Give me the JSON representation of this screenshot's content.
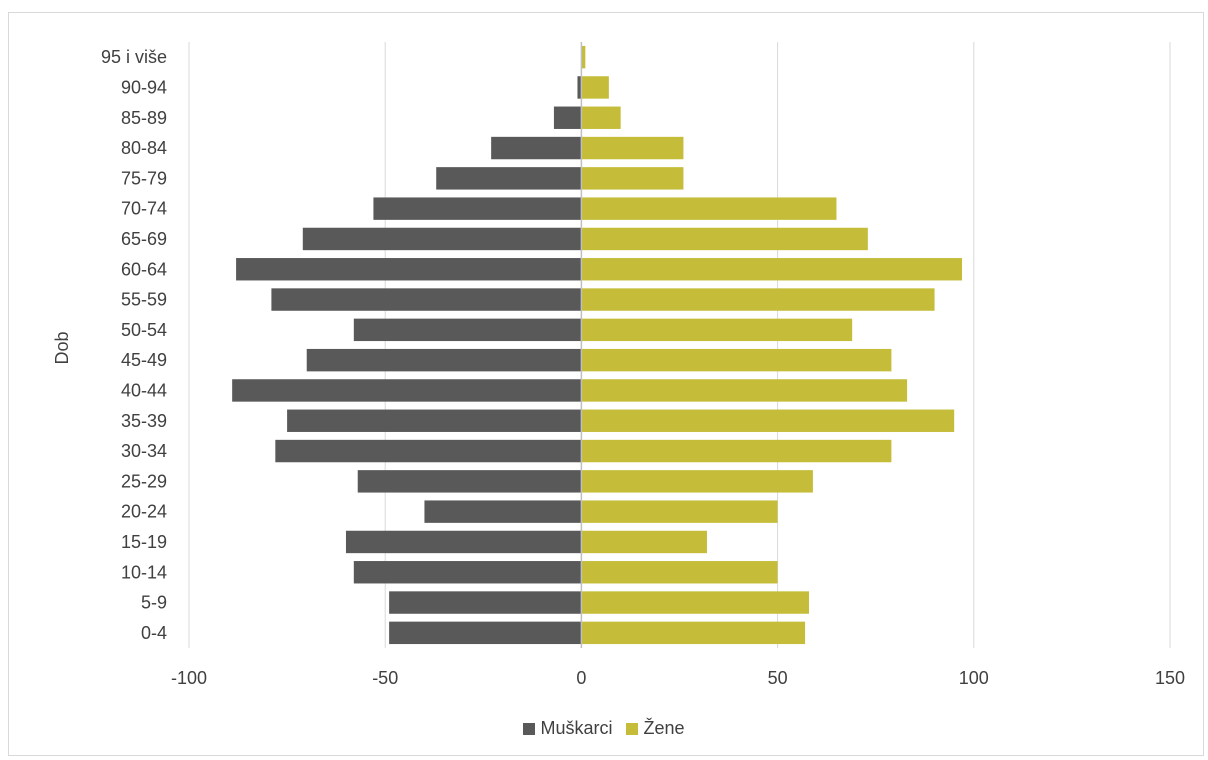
{
  "chart_data": {
    "type": "bar",
    "orientation": "horizontal",
    "ylabel": "Dob",
    "categories": [
      "0-4",
      "5-9",
      "10-14",
      "15-19",
      "20-24",
      "25-29",
      "30-34",
      "35-39",
      "40-44",
      "45-49",
      "50-54",
      "55-59",
      "60-64",
      "65-69",
      "70-74",
      "75-79",
      "80-84",
      "85-89",
      "90-94",
      "95 i više"
    ],
    "series": [
      {
        "name": "Muškarci",
        "color": "#595959",
        "values": [
          -49,
          -49,
          -58,
          -60,
          -40,
          -57,
          -78,
          -75,
          -89,
          -70,
          -58,
          -79,
          -88,
          -71,
          -53,
          -37,
          -23,
          -7,
          -1,
          0
        ]
      },
      {
        "name": "Žene",
        "color": "#c5bd3a",
        "values": [
          57,
          58,
          50,
          32,
          50,
          59,
          79,
          95,
          83,
          79,
          69,
          90,
          97,
          73,
          65,
          26,
          26,
          10,
          7,
          1
        ]
      }
    ],
    "xlim": [
      -100,
      150
    ],
    "xticks": [
      -100,
      -50,
      0,
      50,
      100,
      150
    ],
    "grid": true,
    "legend_position": "bottom"
  }
}
